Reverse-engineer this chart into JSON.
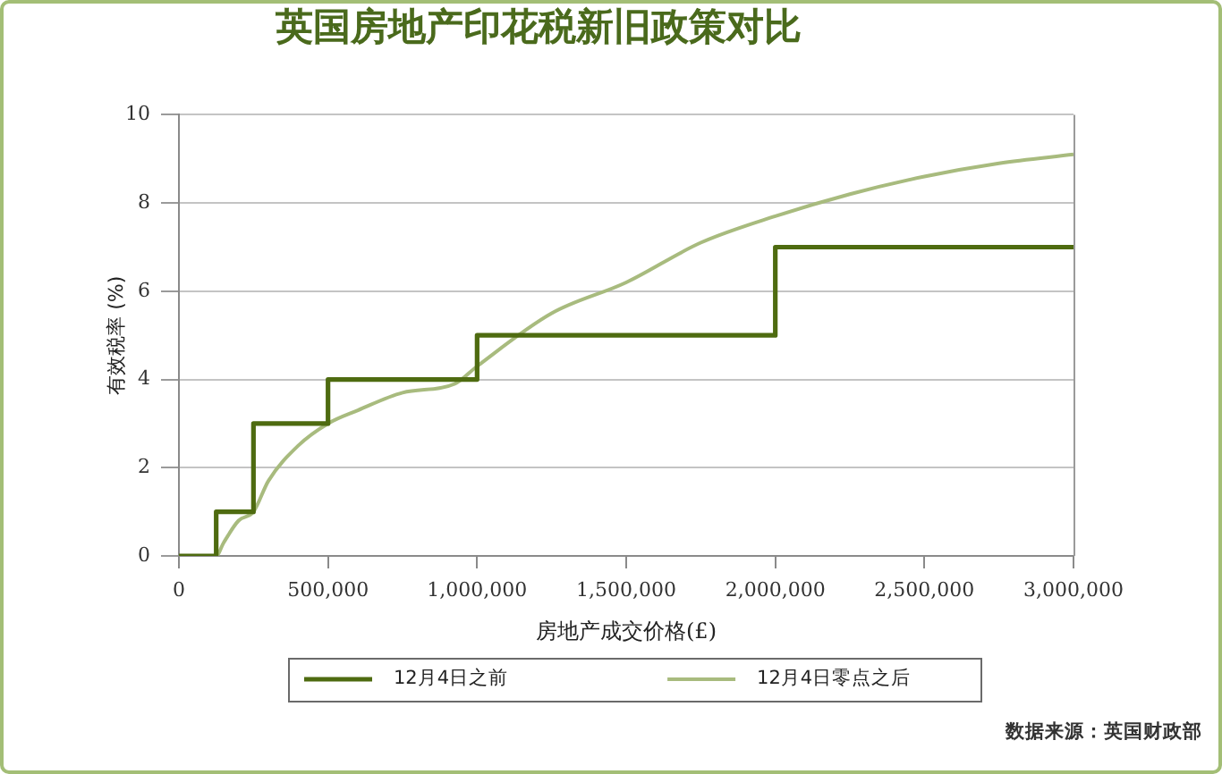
{
  "chart_data": {
    "type": "line",
    "title": "英国房地产印花税新旧政策对比",
    "xlabel": "房地产成交价格(£)",
    "ylabel": "有效税率 (%)",
    "series": [
      {
        "name": "12月4日之前",
        "type": "step",
        "color": "#4e6b10",
        "x": [
          0,
          125000,
          250000,
          500000,
          1000000,
          2000000,
          3000000
        ],
        "values": [
          0,
          1,
          3,
          4,
          5,
          7,
          7
        ]
      },
      {
        "name": "12月4日零点之后",
        "type": "line",
        "color": "#a8bb7e",
        "x": [
          0,
          125000,
          150000,
          200000,
          250000,
          300000,
          400000,
          500000,
          600000,
          750000,
          925000,
          1000000,
          1250000,
          1500000,
          1750000,
          2000000,
          2250000,
          2500000,
          2750000,
          3000000
        ],
        "values": [
          0,
          0,
          0.3,
          0.8,
          1.0,
          1.7,
          2.5,
          3.0,
          3.3,
          3.7,
          3.9,
          4.3,
          5.5,
          6.2,
          7.1,
          7.7,
          8.2,
          8.6,
          8.9,
          9.1
        ]
      }
    ],
    "xlim": [
      0,
      3000000
    ],
    "xticks": [
      0,
      {
        "value": 500000,
        "label": "500,000"
      },
      {
        "value": 1000000,
        "label": "1,000,000"
      },
      {
        "value": 1500000,
        "label": "1,500,000"
      },
      {
        "value": 2000000,
        "label": "2,000,000"
      },
      {
        "value": 2500000,
        "label": "2,500,000"
      },
      {
        "value": 3000000,
        "label": "3,000,000"
      }
    ],
    "ylim": [
      0,
      10
    ],
    "yticks": [
      0,
      2,
      4,
      6,
      8,
      10
    ],
    "grid": "y",
    "legend": "bottom",
    "marker": "none",
    "annotations": [
      "数据来源：英国财政部"
    ]
  }
}
